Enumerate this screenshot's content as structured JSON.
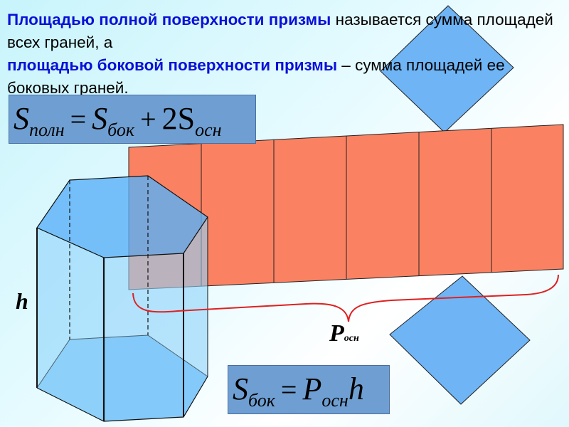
{
  "definition": {
    "term_full": "Площадью полной поверхности призмы",
    "text_1": " называется сумма площадей всех граней, а ",
    "term_lateral": "площадью боковой поверхности призмы",
    "text_2": " – сумма площадей ее боковых граней."
  },
  "formula_full": {
    "s": "S",
    "sub_full": "полн",
    "eq": "=",
    "s2": "S",
    "sub_lat": "бок",
    "plus": "+",
    "coef": "2S",
    "sub_base": "осн"
  },
  "formula_lateral": {
    "s": "S",
    "sub_lat": "бок",
    "eq": "=",
    "p": "P",
    "sub_base": "осн",
    "h": "h"
  },
  "labels": {
    "height": "h",
    "perimeter": "P",
    "perimeter_sub": "осн"
  },
  "colors": {
    "net_faces": "#fa8262",
    "base_faces": "#6fb4f5",
    "brace": "#e02020",
    "formula_box": "#6f9fd2",
    "term_highlight": "#0a10d8"
  }
}
